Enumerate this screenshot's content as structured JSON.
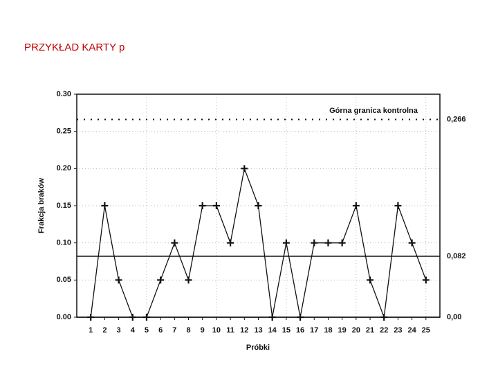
{
  "slide_title": "PRZYKŁAD KARTY p",
  "chart_data": {
    "type": "line",
    "annotation": "Górna granica kontrolna",
    "ylabel": "Frakcja braków",
    "xlabel": "Próbki",
    "categories": [
      "1",
      "2",
      "3",
      "4",
      "5",
      "6",
      "7",
      "8",
      "9",
      "10",
      "11",
      "12",
      "13",
      "14",
      "15",
      "16",
      "17",
      "18",
      "19",
      "20",
      "21",
      "22",
      "23",
      "24",
      "25"
    ],
    "values": [
      0,
      0.15,
      0.05,
      0,
      0,
      0.05,
      0.1,
      0.05,
      0.15,
      0.15,
      0.1,
      0.2,
      0.15,
      0,
      0.1,
      0,
      0.1,
      0.1,
      0.1,
      0.15,
      0.05,
      0,
      0.15,
      0.1,
      0.05
    ],
    "color": "#111111",
    "ylim": [
      0,
      0.3
    ],
    "yticks": [
      {
        "value": 0,
        "label": "0.00"
      },
      {
        "value": 0.05,
        "label": "0.05"
      },
      {
        "value": 0.1,
        "label": "0.10"
      },
      {
        "value": 0.15,
        "label": "0.15"
      },
      {
        "value": 0.2,
        "label": "0.20"
      },
      {
        "value": 0.25,
        "label": "0.25"
      },
      {
        "value": 0.3,
        "label": "0.30"
      }
    ],
    "control_lines": [
      {
        "value": 0.266,
        "label": "0,266",
        "style": "dotted"
      },
      {
        "value": 0.082,
        "label": "0,082",
        "style": "solid"
      },
      {
        "value": 0,
        "label": "0,00",
        "style": "solid"
      }
    ],
    "grid": true
  }
}
